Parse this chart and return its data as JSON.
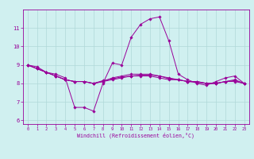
{
  "xlabel": "Windchill (Refroidissement éolien,°C)",
  "background_color": "#d0f0f0",
  "grid_color": "#b0d8d8",
  "line_color": "#990099",
  "xlim": [
    -0.5,
    23.5
  ],
  "ylim": [
    5.8,
    12.0
  ],
  "yticks": [
    6,
    7,
    8,
    9,
    10,
    11
  ],
  "xticks": [
    0,
    1,
    2,
    3,
    4,
    5,
    6,
    7,
    8,
    9,
    10,
    11,
    12,
    13,
    14,
    15,
    16,
    17,
    18,
    19,
    20,
    21,
    22,
    23
  ],
  "series": [
    [
      9.0,
      8.9,
      8.6,
      8.5,
      8.3,
      6.7,
      6.7,
      6.5,
      8.0,
      9.1,
      9.0,
      10.5,
      11.2,
      11.5,
      11.6,
      10.3,
      8.5,
      8.2,
      8.0,
      7.9,
      8.1,
      8.3,
      8.4,
      8.0
    ],
    [
      9.0,
      8.8,
      8.6,
      8.4,
      8.2,
      8.1,
      8.1,
      8.0,
      8.1,
      8.2,
      8.3,
      8.4,
      8.4,
      8.4,
      8.3,
      8.2,
      8.2,
      8.1,
      8.1,
      8.0,
      8.0,
      8.1,
      8.1,
      8.0
    ],
    [
      9.0,
      8.8,
      8.6,
      8.4,
      8.2,
      8.1,
      8.1,
      8.0,
      8.1,
      8.3,
      8.4,
      8.5,
      8.5,
      8.5,
      8.4,
      8.3,
      8.2,
      8.1,
      8.1,
      8.0,
      8.0,
      8.1,
      8.2,
      8.0
    ],
    [
      9.0,
      8.8,
      8.6,
      8.4,
      8.2,
      8.1,
      8.1,
      8.0,
      8.15,
      8.25,
      8.35,
      8.4,
      8.45,
      8.45,
      8.4,
      8.25,
      8.2,
      8.1,
      8.05,
      8.0,
      8.0,
      8.1,
      8.15,
      8.0
    ]
  ]
}
